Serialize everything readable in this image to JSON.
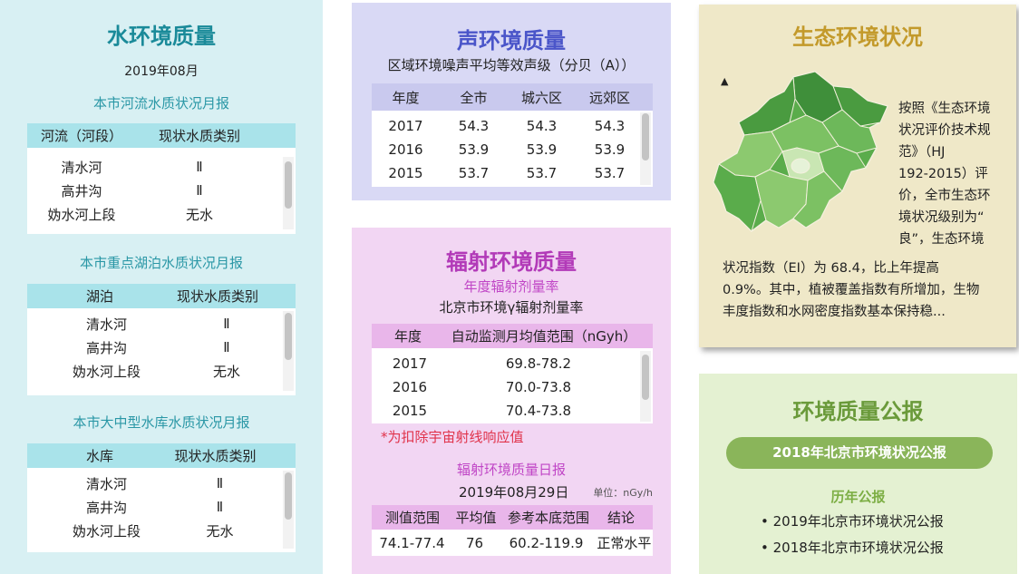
{
  "water": {
    "title": "水环境质量",
    "date": "2019年08月",
    "rivers": {
      "heading": "本市河流水质状况月报",
      "col1": "河流（河段）",
      "col2": "现状水质类别",
      "rows": [
        [
          "清水河",
          "Ⅱ"
        ],
        [
          "高井沟",
          "Ⅱ"
        ],
        [
          "妫水河上段",
          "无水"
        ]
      ]
    },
    "lakes": {
      "heading": "本市重点湖泊水质状况月报",
      "col1": "湖泊",
      "col2": "现状水质类别",
      "rows": [
        [
          "清水河",
          "Ⅱ"
        ],
        [
          "高井沟",
          "Ⅱ"
        ],
        [
          "妫水河上段",
          "无水"
        ]
      ]
    },
    "reservoirs": {
      "heading": "本市大中型水库水质状况月报",
      "col1": "水库",
      "col2": "现状水质类别",
      "rows": [
        [
          "清水河",
          "Ⅱ"
        ],
        [
          "高井沟",
          "Ⅱ"
        ],
        [
          "妫水河上段",
          "无水"
        ]
      ]
    }
  },
  "noise": {
    "title": "声环境质量",
    "subtitle": "区域环境噪声平均等效声级（分贝（A））",
    "headers": [
      "年度",
      "全市",
      "城六区",
      "远郊区"
    ],
    "rows": [
      [
        "2017",
        "54.3",
        "54.3",
        "54.3"
      ],
      [
        "2016",
        "53.9",
        "53.9",
        "53.9"
      ],
      [
        "2015",
        "53.7",
        "53.7",
        "53.7"
      ]
    ]
  },
  "radiation": {
    "title": "辐射环境质量",
    "annual_heading": "年度辐射剂量率",
    "annual_sub": "北京市环境γ辐射剂量率",
    "annual_headers": [
      "年度",
      "自动监测月均值范围（nGyh）"
    ],
    "annual_rows": [
      [
        "2017",
        "69.8-78.2"
      ],
      [
        "2016",
        "70.0-73.8"
      ],
      [
        "2015",
        "70.4-73.8"
      ]
    ],
    "note": "*为扣除宇宙射线响应值",
    "daily_heading": "辐射环境质量日报",
    "daily_date": "2019年08月29日",
    "daily_unit": "单位：nGy/h",
    "daily_headers": [
      "测值范围",
      "平均值",
      "参考本底范围",
      "结论"
    ],
    "daily_row": [
      "74.1-77.4",
      "76",
      "60.2-119.9",
      "正常水平"
    ]
  },
  "eco": {
    "title": "生态环境状况",
    "text_side": [
      "按照《生态环境",
      "状况评价技术规",
      "范》（HJ",
      "192-2015）评",
      "价，全市生态环",
      "境状况级别为“",
      "良”，生态环境"
    ],
    "text_bottom": [
      "状况指数（EI）为 68.4，比上年提高",
      "0.9%。其中，植被覆盖指数有所增加，生物",
      "丰度指数和水网密度指数基本保持稳..."
    ],
    "map_colors": {
      "dark": "#3f8f3a",
      "mid": "#5aac4b",
      "light": "#8cc96f",
      "pale": "#c9e6b3"
    }
  },
  "report": {
    "title": "环境质量公报",
    "featured": "2018年北京市环境状况公报",
    "history_heading": "历年公报",
    "history": [
      "• 2019年北京市环境状况公报",
      "• 2018年北京市环境状况公报"
    ]
  }
}
